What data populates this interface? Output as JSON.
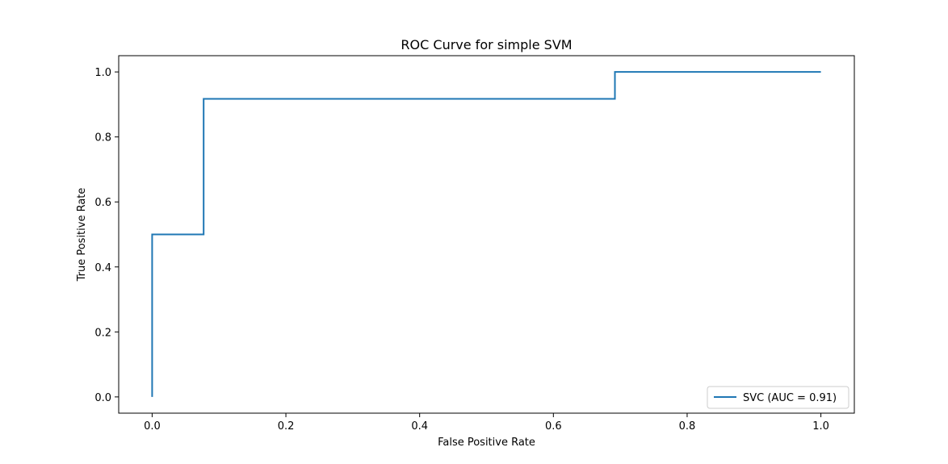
{
  "chart_data": {
    "type": "line",
    "title": "ROC Curve for simple SVM",
    "xlabel": "False Positive Rate",
    "ylabel": "True Positive Rate",
    "xlim": [
      -0.05,
      1.05
    ],
    "ylim": [
      -0.05,
      1.05
    ],
    "x_ticks": [
      0.0,
      0.2,
      0.4,
      0.6,
      0.8,
      1.0
    ],
    "x_tick_labels": [
      "0.0",
      "0.2",
      "0.4",
      "0.6",
      "0.8",
      "1.0"
    ],
    "y_ticks": [
      0.0,
      0.2,
      0.4,
      0.6,
      0.8,
      1.0
    ],
    "y_tick_labels": [
      "0.0",
      "0.2",
      "0.4",
      "0.6",
      "0.8",
      "1.0"
    ],
    "grid": false,
    "legend_position": "lower-right",
    "series": [
      {
        "name": "SVC (AUC = 0.91)",
        "color": "#1f77b4",
        "x": [
          0.0,
          0.0,
          0.077,
          0.077,
          0.692,
          0.692,
          1.0
        ],
        "y": [
          0.0,
          0.5,
          0.5,
          0.917,
          0.917,
          1.0,
          1.0
        ]
      }
    ]
  }
}
